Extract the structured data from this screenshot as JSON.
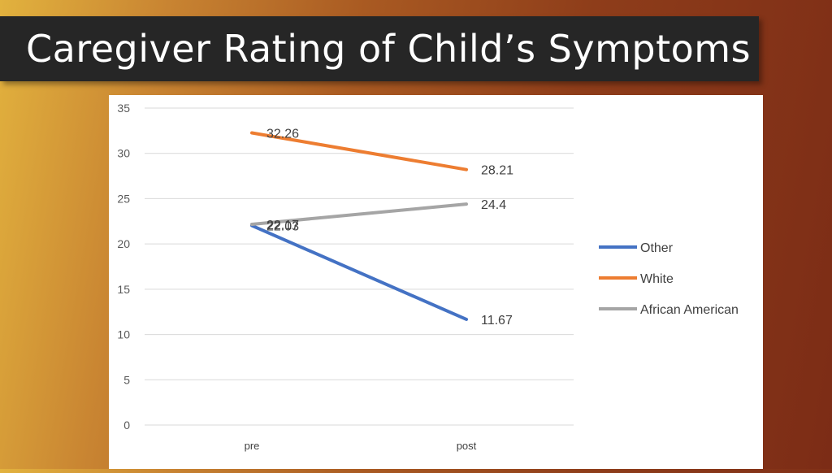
{
  "slide": {
    "title": "Caregiver Rating of Child’s Symptoms"
  },
  "chart_data": {
    "type": "line",
    "categories": [
      "pre",
      "post"
    ],
    "series": [
      {
        "name": "Other",
        "values": [
          22.03,
          11.67
        ],
        "labels": [
          "22.03",
          "11.67"
        ],
        "color": "#4472c4"
      },
      {
        "name": "White",
        "values": [
          32.26,
          28.21
        ],
        "labels": [
          "32.26",
          "28.21"
        ],
        "color": "#ed7d31"
      },
      {
        "name": "African American",
        "values": [
          22.17,
          24.4
        ],
        "labels": [
          "22.17",
          "24.4"
        ],
        "color": "#a5a5a5"
      }
    ],
    "ylim": [
      0,
      35
    ],
    "yticks": [
      "0",
      "5",
      "10",
      "15",
      "20",
      "25",
      "30",
      "35"
    ],
    "grid": true,
    "legend_position": "right"
  }
}
